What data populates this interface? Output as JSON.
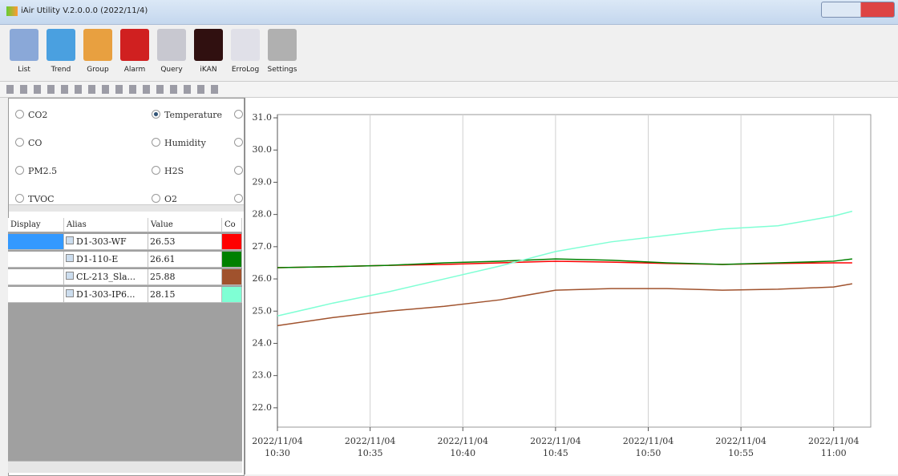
{
  "window": {
    "title": "iAir Utility V.2.0.0.0 (2022/11/4)"
  },
  "toolbar": {
    "buttons": [
      "List",
      "Trend",
      "Group",
      "Alarm",
      "Query",
      "iKAN",
      "ErroLog",
      "Settings"
    ]
  },
  "radios": {
    "options": [
      "CO2",
      "Temperature",
      "CO",
      "Humidity",
      "PM2.5",
      "H2S",
      "TVOC",
      "O2"
    ],
    "selected": "Temperature"
  },
  "table": {
    "headers": [
      "Display",
      "Alias",
      "Value",
      "Co"
    ],
    "values": [
      "26.53",
      "26.61",
      "25.88",
      "28.15"
    ]
  },
  "chart_data": {
    "type": "line",
    "x": [
      "2022/11/04 10:30",
      "2022/11/04 10:33",
      "2022/11/04 10:36",
      "2022/11/04 10:39",
      "2022/11/04 10:42",
      "2022/11/04 10:45",
      "2022/11/04 10:48",
      "2022/11/04 10:51",
      "2022/11/04 10:54",
      "2022/11/04 10:57",
      "2022/11/04 11:00",
      "2022/11/04 11:01"
    ],
    "series": [
      {
        "name": "D1-303-WF",
        "color": "#ff0000",
        "values": [
          26.35,
          26.38,
          26.42,
          26.45,
          26.5,
          26.55,
          26.52,
          26.48,
          26.45,
          26.48,
          26.5,
          26.5
        ]
      },
      {
        "name": "D1-110-E",
        "color": "#008000",
        "values": [
          26.35,
          26.38,
          26.42,
          26.5,
          26.55,
          26.62,
          26.58,
          26.5,
          26.45,
          26.5,
          26.55,
          26.62
        ]
      },
      {
        "name": "CL-213_Sla...",
        "color": "#a0522d",
        "values": [
          24.55,
          24.8,
          25.0,
          25.15,
          25.35,
          25.65,
          25.7,
          25.7,
          25.65,
          25.68,
          25.75,
          25.85
        ]
      },
      {
        "name": "D1-303-IP6...",
        "color": "#7fffd4",
        "values": [
          24.85,
          25.25,
          25.6,
          26.0,
          26.4,
          26.85,
          27.15,
          27.35,
          27.55,
          27.65,
          27.95,
          28.1
        ]
      }
    ],
    "xlim": [
      "2022/11/04 10:30",
      "2022/11/04 11:02"
    ],
    "xticks": [
      {
        "value": "2022/11/04 10:30",
        "label": "2022/11/04\n10:30"
      },
      {
        "value": "2022/11/04 10:35",
        "label": "2022/11/04\n10:35"
      },
      {
        "value": "2022/11/04 10:40",
        "label": "2022/11/04\n10:40"
      },
      {
        "value": "2022/11/04 10:45",
        "label": "2022/11/04\n10:45"
      },
      {
        "value": "2022/11/04 10:50",
        "label": "2022/11/04\n10:50"
      },
      {
        "value": "2022/11/04 10:55",
        "label": "2022/11/04\n10:55"
      },
      {
        "value": "2022/11/04 11:00",
        "label": "2022/11/04\n11:00"
      }
    ],
    "ylim": [
      21.4,
      31.1
    ],
    "yticks": [
      {
        "value": 22,
        "label": "22.0"
      },
      {
        "value": 23,
        "label": "23.0"
      },
      {
        "value": 24,
        "label": "24.0"
      },
      {
        "value": 25,
        "label": "25.0"
      },
      {
        "value": 26,
        "label": "26.0"
      },
      {
        "value": 27,
        "label": "27.0"
      },
      {
        "value": 28,
        "label": "28.0"
      },
      {
        "value": 29,
        "label": "29.0"
      },
      {
        "value": 30,
        "label": "30.0"
      },
      {
        "value": 31,
        "label": "31.0"
      }
    ],
    "grid": {
      "x": true,
      "y": false
    }
  }
}
